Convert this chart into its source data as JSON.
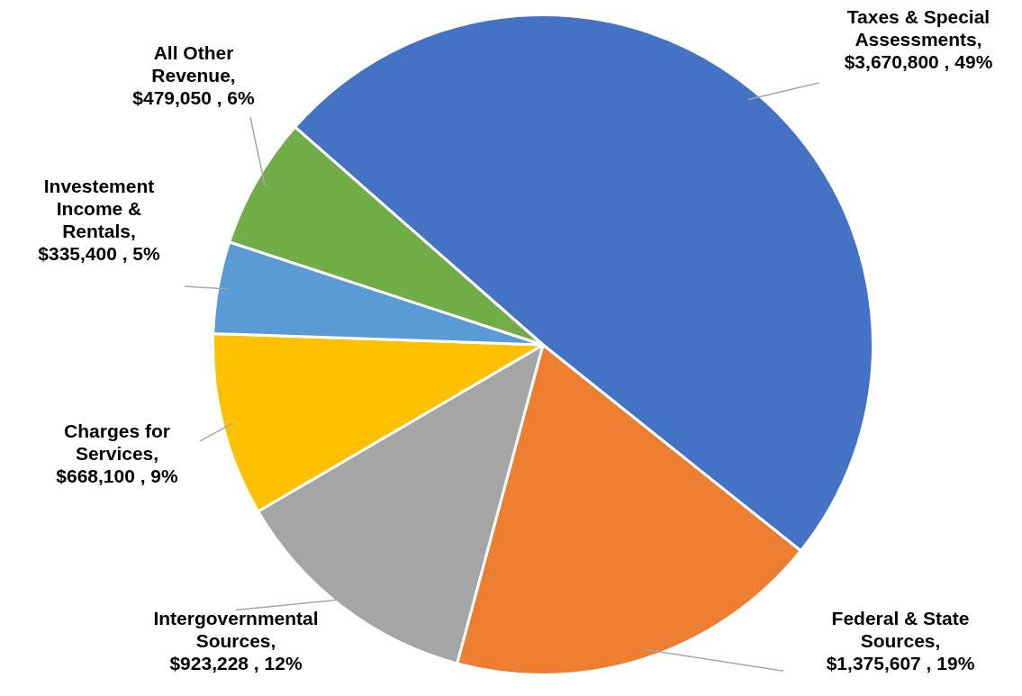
{
  "chart_data": {
    "type": "pie",
    "categories": [
      "Taxes & Special Assessments",
      "Federal & State Sources",
      "Intergovernmental Sources",
      "Charges for Services",
      "Investement Income & Rentals",
      "All Other Revenue"
    ],
    "values": [
      3670800,
      1375607,
      923228,
      668100,
      335400,
      479050
    ],
    "colors": [
      "#4472c4",
      "#ed7d31",
      "#a5a5a5",
      "#ffc000",
      "#5b9bd5",
      "#70ad47"
    ],
    "value_labels": [
      ", $3,670,800 , 49%",
      ", $1,375,607 , 19%",
      ", $923,228 , 12%",
      ", $668,100 , 9%",
      ", $335,400 , 5%",
      ", $479,050 , 6%"
    ]
  }
}
